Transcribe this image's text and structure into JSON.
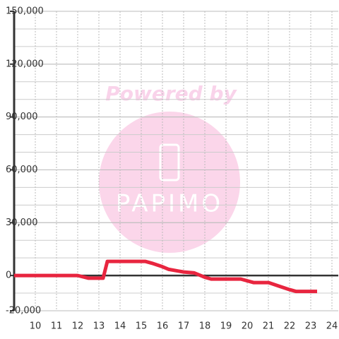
{
  "chart_data": {
    "type": "line",
    "watermark": {
      "line1": "Powered by",
      "line2": "PAPIMO"
    },
    "x": [
      9,
      12,
      12.5,
      13.2,
      13.4,
      13.6,
      15.2,
      15.5,
      16,
      16.3,
      17,
      17.5,
      18,
      18.3,
      19.7,
      20.3,
      21,
      21.5,
      22,
      22.3,
      23.3
    ],
    "series": [
      {
        "color": "#e8253f",
        "values": [
          0,
          0,
          -1500,
          -1500,
          8000,
          8000,
          8000,
          7000,
          5000,
          3500,
          2000,
          1500,
          -1000,
          -2000,
          -2000,
          -4000,
          -4000,
          -6000,
          -8000,
          -9000,
          -9000
        ]
      }
    ],
    "xlim": [
      9,
      24.3
    ],
    "xticks": [
      10,
      11,
      12,
      13,
      14,
      15,
      16,
      17,
      18,
      19,
      20,
      21,
      22,
      23,
      24
    ],
    "ylim": [
      -20000,
      150000
    ],
    "yticks": [
      {
        "value": -20000,
        "label": "-20,000"
      },
      0,
      {
        "value": 30000,
        "label": "30,000"
      },
      {
        "value": 60000,
        "label": "60,000"
      },
      {
        "value": 90000,
        "label": "90,000"
      },
      {
        "value": 120000,
        "label": "120,000"
      },
      {
        "value": 150000,
        "label": "150,000"
      }
    ],
    "minor_grid_step": 10000,
    "grid": true
  }
}
